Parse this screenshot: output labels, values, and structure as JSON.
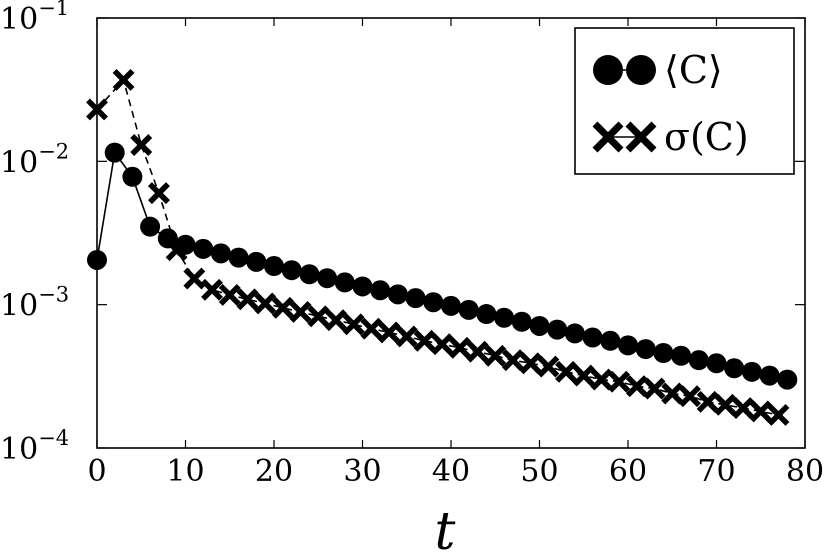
{
  "chart_data": {
    "type": "scatter",
    "title": "",
    "xlabel": "t",
    "ylabel": "",
    "xlim": [
      0,
      80
    ],
    "ylim": [
      0.0001,
      0.1
    ],
    "yscale": "log",
    "grid": false,
    "legend_position": "top-right",
    "x_ticks": [
      "0",
      "10",
      "20",
      "30",
      "40",
      "50",
      "60",
      "70",
      "80"
    ],
    "y_ticks": [
      {
        "base": "10",
        "exp": "−4",
        "value": 0.0001
      },
      {
        "base": "10",
        "exp": "−3",
        "value": 0.001
      },
      {
        "base": "10",
        "exp": "−2",
        "value": 0.01
      },
      {
        "base": "10",
        "exp": "−1",
        "value": 0.1
      }
    ],
    "series": [
      {
        "name": "⟨C⟩",
        "marker": "circle",
        "line": "solid",
        "color": "#000000",
        "x": [
          0,
          2,
          4,
          6,
          8,
          10,
          12,
          14,
          16,
          18,
          20,
          22,
          24,
          26,
          28,
          30,
          32,
          34,
          36,
          38,
          40,
          42,
          44,
          46,
          48,
          50,
          52,
          54,
          56,
          58,
          60,
          62,
          64,
          66,
          68,
          70,
          72,
          74,
          76,
          78
        ],
        "y": [
          0.00205,
          0.0115,
          0.0078,
          0.0035,
          0.0029,
          0.00262,
          0.00245,
          0.00228,
          0.00213,
          0.00199,
          0.00186,
          0.00174,
          0.00163,
          0.00153,
          0.00143,
          0.00134,
          0.00126,
          0.00118,
          0.00111,
          0.00104,
          0.00098,
          0.00092,
          0.00086,
          0.00081,
          0.00076,
          0.00071,
          0.00067,
          0.00063,
          0.00059,
          0.00056,
          0.00052,
          0.00049,
          0.00046,
          0.00044,
          0.00041,
          0.00039,
          0.00036,
          0.00034,
          0.00032,
          0.0003
        ]
      },
      {
        "name": "σ(C)",
        "marker": "x",
        "line": "dashed",
        "color": "#000000",
        "x": [
          0,
          3,
          5,
          7,
          9,
          11,
          13,
          15,
          17,
          19,
          21,
          23,
          25,
          27,
          29,
          31,
          33,
          35,
          37,
          39,
          41,
          43,
          45,
          47,
          49,
          51,
          53,
          55,
          57,
          59,
          61,
          63,
          65,
          67,
          69,
          71,
          73,
          75,
          77
        ],
        "y": [
          0.023,
          0.037,
          0.013,
          0.006,
          0.0024,
          0.00152,
          0.00127,
          0.00117,
          0.00109,
          0.00102,
          0.00095,
          0.00089,
          0.00083,
          0.00078,
          0.00073,
          0.00068,
          0.00064,
          0.0006,
          0.00056,
          0.00053,
          0.0005,
          0.00047,
          0.00044,
          0.00041,
          0.00039,
          0.00037,
          0.00034,
          0.00032,
          0.0003,
          0.00029,
          0.00027,
          0.00026,
          0.00024,
          0.00023,
          0.00021,
          0.0002,
          0.00019,
          0.00018,
          0.00017
        ]
      }
    ]
  }
}
